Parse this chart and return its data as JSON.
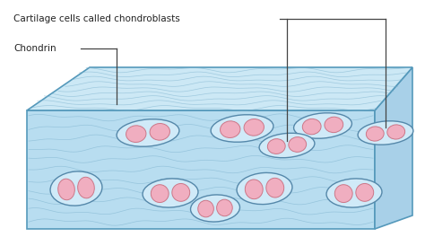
{
  "bg_color": "#ffffff",
  "block_top_color": "#cce8f5",
  "block_front_color": "#b8ddf0",
  "block_side_color": "#a8d0e8",
  "block_outline": "#5599bb",
  "cell_body_color": "#d0eaf8",
  "cell_outline_color": "#5588aa",
  "nucleus_color": "#f0aec0",
  "nucleus_outline": "#cc7788",
  "fiber_color": "#7ab0cc",
  "label1": "Cartilage cells called chondroblasts",
  "label2": "Chondrin",
  "text_color": "#222222",
  "annotation_color": "#444444",
  "top_cells": [
    [
      165,
      148,
      70,
      30,
      5
    ],
    [
      270,
      143,
      70,
      30,
      5
    ],
    [
      360,
      140,
      65,
      28,
      5
    ],
    [
      320,
      162,
      62,
      27,
      5
    ],
    [
      430,
      148,
      62,
      26,
      5
    ]
  ],
  "front_cells": [
    [
      85,
      210,
      58,
      38,
      5
    ],
    [
      190,
      215,
      62,
      32,
      3
    ],
    [
      295,
      210,
      62,
      35,
      4
    ],
    [
      240,
      232,
      55,
      30,
      3
    ],
    [
      395,
      215,
      62,
      32,
      3
    ]
  ]
}
